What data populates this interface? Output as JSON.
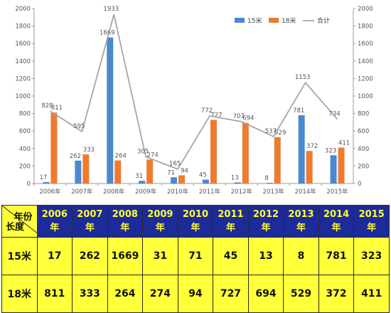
{
  "chart_data": {
    "type": "bar",
    "categories": [
      "2006年",
      "2007年",
      "2008年",
      "2009年",
      "2010年",
      "2011年",
      "2012年",
      "2013年",
      "2014年",
      "2015年"
    ],
    "series": [
      {
        "name": "15米",
        "type": "bar",
        "color": "#4a89d0",
        "values": [
          17,
          262,
          1669,
          31,
          71,
          45,
          13,
          8,
          781,
          323
        ]
      },
      {
        "name": "18米",
        "type": "bar",
        "color": "#ee7b2f",
        "values": [
          811,
          333,
          264,
          274,
          94,
          727,
          694,
          529,
          372,
          411
        ]
      },
      {
        "name": "合计",
        "type": "line",
        "color": "#a6a6a6",
        "values": [
          828,
          595,
          1933,
          305,
          165,
          772,
          707,
          537,
          1153,
          734
        ]
      }
    ],
    "ylim": [
      0,
      2000
    ],
    "y_ticks": [
      0,
      200,
      400,
      600,
      800,
      1000,
      1200,
      1400,
      1600,
      1800,
      2000
    ],
    "secondary_axis": true,
    "legend_position": "top-right",
    "grid": false
  },
  "table": {
    "corner_year": "年份",
    "corner_length": "长度",
    "years": [
      "2006年",
      "2007年",
      "2008年",
      "2009年",
      "2010年",
      "2011年",
      "2012年",
      "2013年",
      "2014年",
      "2015年"
    ],
    "rows": [
      {
        "label": "15米",
        "values": [
          "17",
          "262",
          "1669",
          "31",
          "71",
          "45",
          "13",
          "8",
          "781",
          "323"
        ]
      },
      {
        "label": "18米",
        "values": [
          "811",
          "333",
          "264",
          "274",
          "94",
          "727",
          "694",
          "529",
          "372",
          "411"
        ]
      }
    ]
  },
  "colors": {
    "header_bg": "#1d2a9a",
    "header_text": "#ffff33",
    "cell_bg": "#ffff3a"
  }
}
